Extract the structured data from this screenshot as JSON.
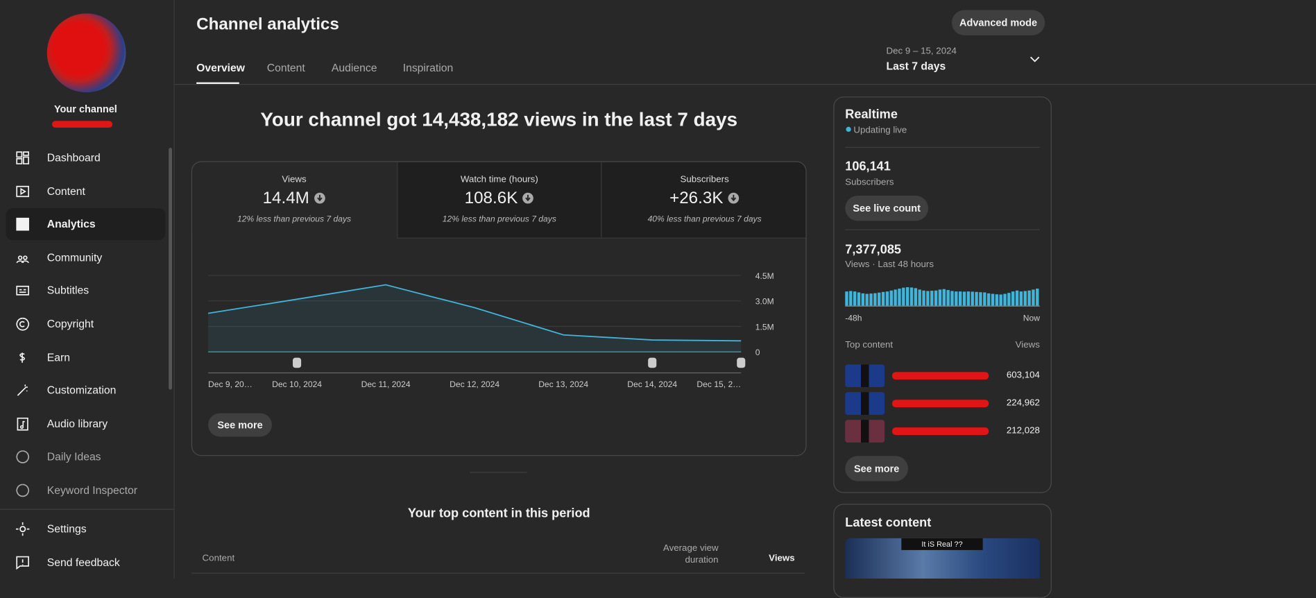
{
  "sidebar": {
    "channel_name": "Your channel",
    "nav": [
      "Dashboard",
      "Content",
      "Analytics",
      "Community",
      "Subtitles",
      "Copyright",
      "Earn",
      "Customization",
      "Audio library",
      "Daily Ideas",
      "Keyword Inspector"
    ],
    "footer": [
      "Settings",
      "Send feedback"
    ]
  },
  "header": {
    "title": "Channel analytics",
    "tabs": [
      "Overview",
      "Content",
      "Audience",
      "Inspiration"
    ],
    "button": "Advanced mode",
    "date_range": "Dec 9 – 15, 2024",
    "period": "Last 7 days"
  },
  "headline": "Your channel got 14,438,182 views in the last 7 days",
  "metrics": [
    {
      "label": "Views",
      "value": "14.4M",
      "note": "12% less than previous 7 days"
    },
    {
      "label": "Watch time (hours)",
      "value": "108.6K",
      "note": "12% less than previous 7 days"
    },
    {
      "label": "Subscribers",
      "value": "+26.3K",
      "note": "40% less than previous 7 days"
    }
  ],
  "chart_data": {
    "type": "line",
    "categories": [
      "Dec 9, 20…",
      "Dec 10, 2024",
      "Dec 11, 2024",
      "Dec 12, 2024",
      "Dec 13, 2024",
      "Dec 14, 2024",
      "Dec 15, 2…"
    ],
    "values": [
      2270000,
      3100000,
      3950000,
      2600000,
      1000000,
      700000,
      650000
    ],
    "color": "#41b4d9",
    "ylim": [
      0,
      4500000
    ],
    "yticks": [
      0,
      {
        "value": 1500000,
        "label": "1.5M"
      },
      {
        "value": 3000000,
        "label": "3.0M"
      },
      {
        "value": 4500000,
        "label": "4.5M"
      }
    ],
    "grid": true
  },
  "see_more": "See more",
  "realtime": {
    "title": "Realtime",
    "status": "Updating live",
    "subscribers": "106,141",
    "subscribers_label": "Subscribers",
    "live_button": "See live count",
    "views": "7,377,085",
    "views_label": "Views · Last 48 hours",
    "chart": {
      "type": "bar",
      "color": "#41b4d9",
      "values": [
        150000,
        155000,
        150000,
        140000,
        130000,
        125000,
        128000,
        132000,
        138000,
        145000,
        150000,
        160000,
        170000,
        180000,
        190000,
        195000,
        192000,
        185000,
        170000,
        160000,
        155000,
        158000,
        160000,
        170000,
        175000,
        165000,
        155000,
        150000,
        150000,
        148000,
        150000,
        148000,
        145000,
        142000,
        140000,
        130000,
        125000,
        120000,
        118000,
        125000,
        135000,
        150000,
        160000,
        150000,
        155000,
        160000,
        170000,
        180000
      ],
      "x_start": "-48h",
      "x_end": "Now"
    },
    "top_content_label": "Top content",
    "views_column": "Views",
    "items": [
      "603,104",
      "224,962",
      "212,028"
    ],
    "see_more": "See more"
  },
  "latest": {
    "title": "Latest content",
    "thumb_text": "It iS Real ??"
  },
  "top_content": {
    "title": "Your top content in this period",
    "columns": [
      "Content",
      "Average view duration",
      "Views"
    ]
  }
}
